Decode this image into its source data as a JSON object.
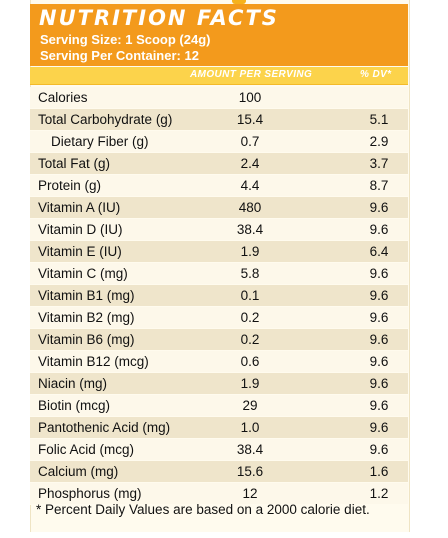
{
  "label": {
    "title": "NUTRITION FACTS",
    "serving_size": "Serving Size: 1 Scoop (24g)",
    "servings_per_container": "Serving Per Container: 12"
  },
  "columns": {
    "amount_header": "AMOUNT PER SERVING",
    "dv_header": "% DV*"
  },
  "nutrients": [
    {
      "name": "Calories",
      "amount": "100",
      "dv": ""
    },
    {
      "name": "Total Carbohydrate (g)",
      "amount": "15.4",
      "dv": "5.1"
    },
    {
      "name": "Dietary Fiber (g)",
      "amount": "0.7",
      "dv": "2.9",
      "indent": true
    },
    {
      "name": "Total Fat (g)",
      "amount": "2.4",
      "dv": "3.7"
    },
    {
      "name": "Protein (g)",
      "amount": "4.4",
      "dv": "8.7"
    },
    {
      "name": "Vitamin A (IU)",
      "amount": "480",
      "dv": "9.6"
    },
    {
      "name": "Vitamin D (IU)",
      "amount": "38.4",
      "dv": "9.6"
    },
    {
      "name": "Vitamin E (IU)",
      "amount": "1.9",
      "dv": "6.4"
    },
    {
      "name": "Vitamin C (mg)",
      "amount": "5.8",
      "dv": "9.6"
    },
    {
      "name": "Vitamin B1 (mg)",
      "amount": "0.1",
      "dv": "9.6"
    },
    {
      "name": "Vitamin B2 (mg)",
      "amount": "0.2",
      "dv": "9.6"
    },
    {
      "name": "Vitamin B6 (mg)",
      "amount": "0.2",
      "dv": "9.6"
    },
    {
      "name": "Vitamin B12 (mcg)",
      "amount": "0.6",
      "dv": "9.6"
    },
    {
      "name": "Niacin (mg)",
      "amount": "1.9",
      "dv": "9.6"
    },
    {
      "name": "Biotin (mcg)",
      "amount": "29",
      "dv": "9.6"
    },
    {
      "name": "Pantothenic Acid (mg)",
      "amount": "1.0",
      "dv": "9.6"
    },
    {
      "name": "Folic Acid (mcg)",
      "amount": "38.4",
      "dv": "9.6"
    },
    {
      "name": "Calcium (mg)",
      "amount": "15.6",
      "dv": "1.6"
    },
    {
      "name": "Phosphorus (mg)",
      "amount": "12",
      "dv": "1.2"
    }
  ],
  "footnote": "* Percent Daily Values are based on a 2000 calorie diet.",
  "colors": {
    "header_orange": "#f39a1c",
    "column_bar_yellow": "#fcd34b",
    "row_light": "#fdf8ea",
    "row_dark": "#efe5cb"
  }
}
